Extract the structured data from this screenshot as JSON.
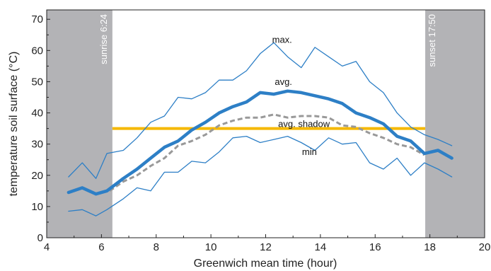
{
  "chart_data": {
    "type": "line",
    "xlabel": "Greenwich mean time (hour)",
    "ylabel": "temperature soil surface (°C)",
    "xlim": [
      4,
      20
    ],
    "ylim": [
      0,
      73
    ],
    "xticks": [
      4,
      6,
      8,
      10,
      12,
      14,
      16,
      18,
      20
    ],
    "yticks": [
      0,
      10,
      20,
      30,
      40,
      50,
      60,
      70
    ],
    "shaded_regions": [
      {
        "label": "sunrise 6:24",
        "x": [
          4,
          6.4
        ],
        "color": "#b3b3b6"
      },
      {
        "label": "sunset 17:50",
        "x": [
          17.83,
          20
        ],
        "color": "#b3b3b6"
      }
    ],
    "reference_line": {
      "y": 35,
      "x": [
        6.4,
        17.83
      ],
      "color": "#f5b800"
    },
    "series": [
      {
        "name": "max.",
        "color": "#2d7fc6",
        "style": "thin",
        "x": [
          4.8,
          5.3,
          5.8,
          6.2,
          6.8,
          7.3,
          7.8,
          8.3,
          8.8,
          9.3,
          9.8,
          10.3,
          10.8,
          11.3,
          11.8,
          12.3,
          12.8,
          13.3,
          13.8,
          14.3,
          14.8,
          15.3,
          15.8,
          16.3,
          16.8,
          17.3,
          17.8,
          18.3,
          18.8
        ],
        "values": [
          19.5,
          24,
          19,
          27,
          28,
          32,
          37,
          39,
          45,
          44.5,
          46.5,
          50.5,
          50.5,
          53.5,
          59,
          62.5,
          58,
          54.5,
          61,
          58,
          55,
          56.5,
          50,
          46.5,
          40,
          35.5,
          33,
          31.5,
          29.5
        ]
      },
      {
        "name": "avg.",
        "color": "#2d7fc6",
        "style": "thick",
        "x": [
          4.8,
          5.3,
          5.8,
          6.2,
          6.8,
          7.3,
          7.8,
          8.3,
          8.8,
          9.3,
          9.8,
          10.3,
          10.8,
          11.3,
          11.8,
          12.3,
          12.8,
          13.3,
          13.8,
          14.3,
          14.8,
          15.3,
          15.8,
          16.3,
          16.8,
          17.3,
          17.8,
          18.3,
          18.8
        ],
        "values": [
          14.5,
          16,
          14,
          15,
          19,
          22,
          25.5,
          29,
          31,
          34.5,
          37,
          40,
          42,
          43.5,
          46.5,
          46,
          47,
          46.5,
          45.5,
          44.5,
          43,
          40,
          38.5,
          36.5,
          32.5,
          31,
          27,
          28,
          25.5
        ]
      },
      {
        "name": "avg. shadow",
        "color": "#999999",
        "style": "dashed",
        "x": [
          6.3,
          6.8,
          7.3,
          7.8,
          8.3,
          8.8,
          9.3,
          9.8,
          10.3,
          10.8,
          11.3,
          11.8,
          12.3,
          12.8,
          13.3,
          13.8,
          14.3,
          14.8,
          15.3,
          15.8,
          16.3,
          16.8,
          17.3,
          17.8
        ],
        "values": [
          15,
          18,
          20,
          23,
          25.5,
          29.5,
          31,
          33,
          36,
          37.5,
          38.5,
          38.5,
          39.5,
          38.5,
          39,
          39,
          38.5,
          36,
          35.5,
          33.5,
          32,
          30,
          29,
          26.5
        ]
      },
      {
        "name": "min",
        "color": "#2d7fc6",
        "style": "thin",
        "x": [
          4.8,
          5.3,
          5.8,
          6.2,
          6.8,
          7.3,
          7.8,
          8.3,
          8.8,
          9.3,
          9.8,
          10.3,
          10.8,
          11.3,
          11.8,
          12.3,
          12.8,
          13.3,
          13.8,
          14.3,
          14.8,
          15.3,
          15.8,
          16.3,
          16.8,
          17.3,
          17.8,
          18.3,
          18.8
        ],
        "values": [
          8.5,
          9,
          7,
          9,
          12.5,
          16,
          15,
          21,
          21,
          24.5,
          24,
          27.5,
          32,
          32.5,
          30.5,
          31.5,
          32.5,
          30.5,
          28,
          32,
          30,
          30.5,
          24,
          22,
          25.5,
          20,
          24,
          22,
          19.5
        ]
      }
    ],
    "annotations": [
      {
        "text": "max.",
        "x": 12.6,
        "y": 62.5
      },
      {
        "text": "avg.",
        "x": 12.65,
        "y": 49
      },
      {
        "text": "avg. shadow",
        "x": 13.4,
        "y": 35.5
      },
      {
        "text": "min",
        "x": 13.6,
        "y": 26.5
      }
    ]
  }
}
